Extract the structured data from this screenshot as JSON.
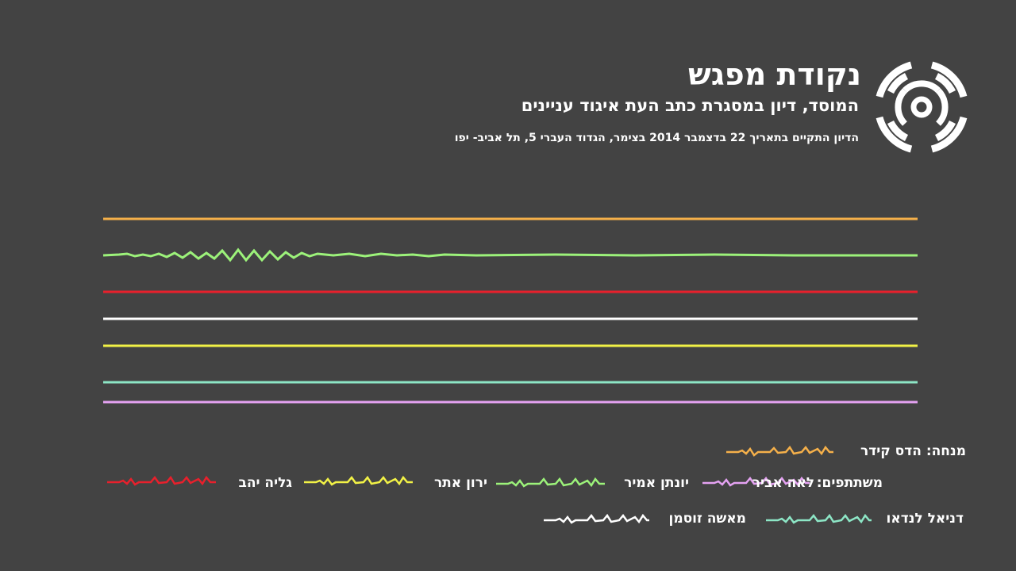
{
  "header": {
    "title": "נקודת מפגש",
    "subtitle": "המוסד, דיון במסגרת כתב העת איגוד עניינים",
    "event_info": "הדיון התקיים בתאריך 22 בדצמבר 2014 בצימר, הגדוד העברי 5, תל אביב- יפו",
    "logo_icon": "signal-broadcast-icon"
  },
  "colors": {
    "background": "#434343",
    "host": "#f5b04a",
    "lea": "#e4a2f2",
    "yonatan": "#9cf27a",
    "yaron": "#f2f246",
    "galia": "#e8202c",
    "daniel": "#8de6c6",
    "masha": "#ffffff"
  },
  "timeline_tracks": [
    {
      "name": "host",
      "color": "#f5b04a"
    },
    {
      "name": "yonatan",
      "color": "#9cf27a",
      "active": true
    },
    {
      "name": "galia",
      "color": "#e8202c"
    },
    {
      "name": "masha",
      "color": "#ffffff"
    },
    {
      "name": "yaron",
      "color": "#f2f246"
    },
    {
      "name": "daniel",
      "color": "#8de6c6"
    },
    {
      "name": "lea",
      "color": "#e4a2f2"
    }
  ],
  "legend": {
    "host_label": "מנחה: הדס קידר",
    "participants_prefix": "משתתפים:",
    "lea": "לאה אביר",
    "yonatan": "יונתן אמיר",
    "yaron": "ירון אתר",
    "galia": "גליה יהב",
    "daniel": "דניאל לנדאו",
    "masha": "מאשה זוסמן"
  }
}
